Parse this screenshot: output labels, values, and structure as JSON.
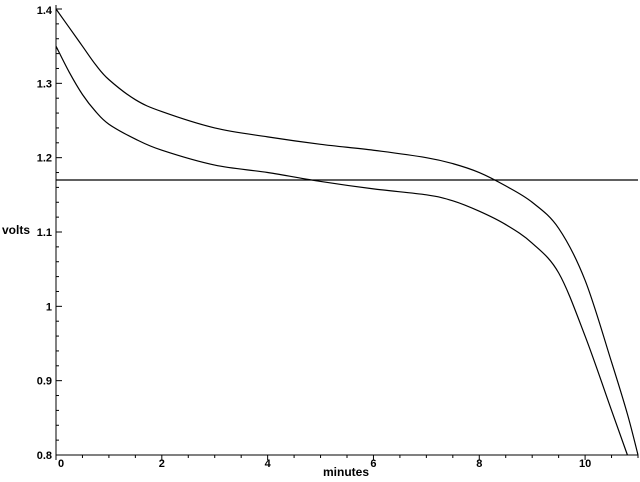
{
  "chart_data": {
    "type": "line",
    "title": "",
    "xlabel": "minutes",
    "ylabel": "volts",
    "xlim": [
      0,
      11
    ],
    "ylim": [
      0.8,
      1.4
    ],
    "x_ticks": [
      0,
      2,
      4,
      6,
      8,
      10
    ],
    "y_ticks": [
      0.8,
      0.9,
      1,
      1.1,
      1.2,
      1.3,
      1.4
    ],
    "x_tick_labels": [
      "0",
      "2",
      "4",
      "6",
      "8",
      "10"
    ],
    "y_tick_labels": [
      "0.8",
      "0.9",
      "1",
      "1.1",
      "1.2",
      "1.3",
      "1.4"
    ],
    "grid": false,
    "legend": false,
    "series": [
      {
        "x": [
          0,
          0.25,
          0.5,
          0.75,
          1,
          1.5,
          2,
          3,
          4,
          5,
          6,
          7,
          7.5,
          8,
          8.5,
          9,
          9.5,
          10,
          10.5,
          10.8,
          11
        ],
        "y": [
          1.4,
          1.375,
          1.35,
          1.325,
          1.305,
          1.278,
          1.262,
          1.24,
          1.228,
          1.218,
          1.21,
          1.2,
          1.192,
          1.18,
          1.162,
          1.14,
          1.105,
          1.035,
          0.925,
          0.855,
          0.8
        ]
      },
      {
        "x": [
          0,
          0.25,
          0.5,
          0.75,
          1,
          1.5,
          2,
          3,
          4,
          5,
          6,
          7,
          7.5,
          8,
          8.5,
          9,
          9.5,
          10,
          10.5,
          10.8
        ],
        "y": [
          1.35,
          1.315,
          1.285,
          1.262,
          1.245,
          1.225,
          1.21,
          1.19,
          1.18,
          1.168,
          1.158,
          1.15,
          1.142,
          1.128,
          1.11,
          1.085,
          1.045,
          0.96,
          0.86,
          0.8
        ]
      },
      {
        "x": [
          0,
          11
        ],
        "y": [
          1.17,
          1.17
        ]
      }
    ]
  }
}
